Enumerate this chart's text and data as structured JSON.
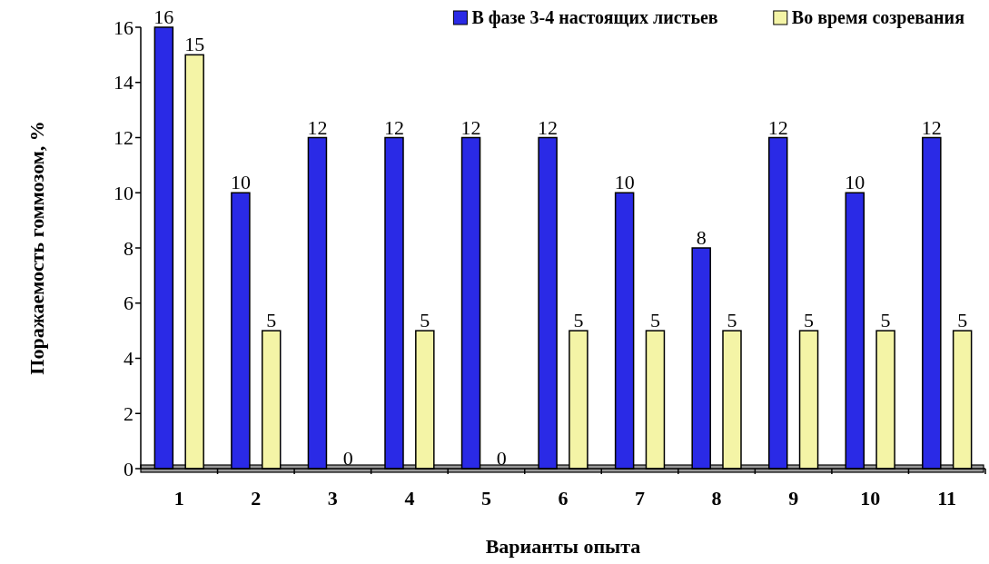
{
  "chart_data": {
    "type": "bar",
    "xlabel": "Варианты опыта",
    "ylabel": "Поражаемость гоммозом, %",
    "categories": [
      "1",
      "2",
      "3",
      "4",
      "5",
      "6",
      "7",
      "8",
      "9",
      "10",
      "11"
    ],
    "series": [
      {
        "name": "В фазе 3-4 настоящих листьев",
        "color": "#2a2ae6",
        "values": [
          16,
          10,
          12,
          12,
          12,
          12,
          10,
          8,
          12,
          10,
          12
        ]
      },
      {
        "name": "Во время созревания",
        "color": "#f4f4a6",
        "values": [
          15,
          5,
          0,
          5,
          0,
          5,
          5,
          5,
          5,
          5,
          5
        ]
      }
    ],
    "ylim": [
      0,
      16
    ],
    "yticks": [
      0,
      2,
      4,
      6,
      8,
      10,
      12,
      14,
      16
    ],
    "data_labels": true,
    "legend": "top right",
    "grid": false
  }
}
